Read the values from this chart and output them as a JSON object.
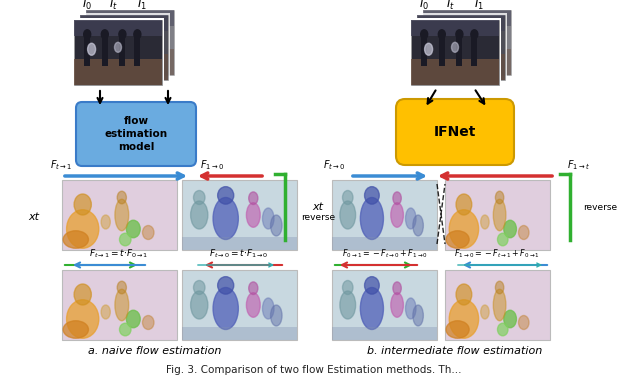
{
  "bg": "#ffffff",
  "subtitle_a": "a. naive flow estimation",
  "subtitle_b": "b. intermediate flow estimation",
  "box_left_text": "flow\nestimation\nmodel",
  "box_right_text": "IFNet",
  "box_left_color": "#6AABE0",
  "box_right_color": "#FFC000",
  "box_left_edge": "#3A7BC8",
  "box_right_edge": "#CC9900",
  "arrow_blue": "#3B8CD4",
  "arrow_red": "#D43030",
  "arrow_green": "#30B030",
  "arrow_cyan": "#30AEAE",
  "flow_warm_bg": "#E2D0DC",
  "flow_cool_bg": "#C8D5E2",
  "photo_dark": "#3A3A4A",
  "photo_mid": "#6A7A8A"
}
